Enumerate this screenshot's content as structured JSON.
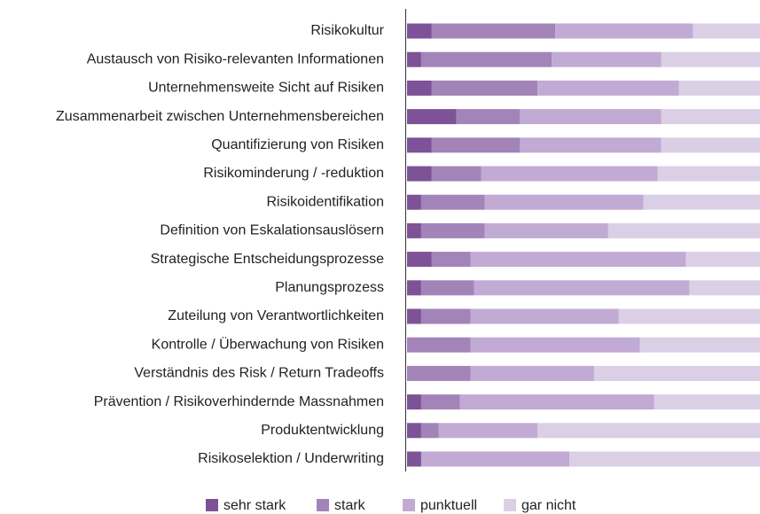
{
  "chart_data": {
    "type": "stacked_barh",
    "categories": [
      "Risikokultur",
      "Austausch von Risiko-relevanten Informationen",
      "Unternehmensweite Sicht auf Risiken",
      "Zusammenarbeit zwischen Unternehmensbereichen",
      "Quantifizierung von Risiken",
      "Risikominderung / -reduktion",
      "Risikoidentifikation",
      "Definition von Eskalationsauslösern",
      "Strategische Entscheidungsprozesse",
      "Planungsprozess",
      "Zuteilung von Verantwortlichkeiten",
      "Kontrolle / Überwachung von Risiken",
      "Verständnis des Risk / Return Tradeoffs",
      "Prävention / Risikoverhindernde Massnahmen",
      "Produktentwicklung",
      "Risikoselektion / Underwriting"
    ],
    "series": [
      {
        "name": "sehr stark",
        "color": "#7e5296",
        "values": [
          7,
          4,
          7,
          14,
          7,
          7,
          4,
          4,
          7,
          4,
          4,
          0,
          0,
          4,
          4,
          4
        ]
      },
      {
        "name": "stark",
        "color": "#a384b8",
        "values": [
          35,
          37,
          30,
          18,
          25,
          14,
          18,
          18,
          11,
          15,
          14,
          18,
          18,
          11,
          5,
          0
        ]
      },
      {
        "name": "punktuell",
        "color": "#c1aad4",
        "values": [
          39,
          31,
          40,
          40,
          40,
          50,
          45,
          35,
          61,
          61,
          42,
          48,
          35,
          55,
          28,
          42
        ]
      },
      {
        "name": "gar nicht",
        "color": "#dbcfe6",
        "values": [
          19,
          28,
          23,
          28,
          28,
          29,
          33,
          43,
          21,
          20,
          40,
          34,
          47,
          30,
          63,
          54
        ]
      }
    ],
    "xlim": [
      0,
      100
    ],
    "legend": "bottom"
  }
}
